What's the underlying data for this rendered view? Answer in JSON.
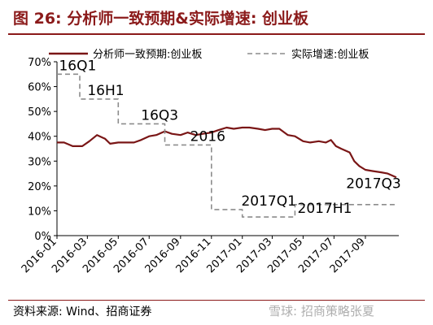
{
  "figure": {
    "title": "图 26:  分析师一致预期&实际增速:  创业板",
    "source": "资料来源:  Wind、招商证券",
    "watermark": "雪球: 招商策略张夏"
  },
  "colors": {
    "forecast": "#7a1616",
    "actual": "#8c8c8c",
    "title": "#8b1a1a"
  },
  "chart_data": {
    "type": "line",
    "ylim": [
      0,
      70
    ],
    "yticks": [
      "0%",
      "10%",
      "20%",
      "30%",
      "40%",
      "50%",
      "60%",
      "70%"
    ],
    "xlim": [
      "2016-01-01",
      "2017-11-06"
    ],
    "xticks": [
      "2016-01",
      "2016-03",
      "2016-05",
      "2016-07",
      "2016-09",
      "2016-11",
      "2017-01",
      "2017-03",
      "2017-05",
      "2017-07",
      "2017-09"
    ],
    "legend_position": "top",
    "grid": false,
    "series": [
      {
        "name": "分析师一致预期:创业板",
        "style": "solid",
        "x": [
          "2016-01-01",
          "2016-01-15",
          "2016-02-01",
          "2016-02-20",
          "2016-03-05",
          "2016-03-20",
          "2016-04-05",
          "2016-04-15",
          "2016-05-01",
          "2016-05-15",
          "2016-06-01",
          "2016-06-15",
          "2016-07-01",
          "2016-07-15",
          "2016-08-01",
          "2016-08-15",
          "2016-09-01",
          "2016-09-15",
          "2016-10-01",
          "2016-10-15",
          "2016-11-01",
          "2016-11-15",
          "2016-12-01",
          "2016-12-15",
          "2017-01-01",
          "2017-01-15",
          "2017-02-01",
          "2017-02-15",
          "2017-03-01",
          "2017-03-15",
          "2017-04-01",
          "2017-04-15",
          "2017-05-01",
          "2017-05-15",
          "2017-06-01",
          "2017-06-15",
          "2017-06-25",
          "2017-07-05",
          "2017-07-15",
          "2017-08-01",
          "2017-08-10",
          "2017-08-20",
          "2017-09-01",
          "2017-09-15",
          "2017-10-01",
          "2017-10-15",
          "2017-11-01"
        ],
        "y": [
          37.5,
          37.5,
          36,
          36,
          38,
          40.5,
          39,
          37,
          37.5,
          37.5,
          37.5,
          38.5,
          40,
          40.5,
          42,
          41,
          40.5,
          41.5,
          40.5,
          41,
          41.5,
          42.5,
          43.5,
          43,
          43.5,
          43.5,
          43,
          42.5,
          43,
          43,
          40.5,
          40,
          38,
          37.5,
          38,
          37.5,
          38.5,
          36,
          35,
          33.5,
          30,
          28,
          26.5,
          26,
          25.5,
          25,
          23.5
        ]
      },
      {
        "name": "实际增速:创业板",
        "style": "dashed",
        "x": [
          "2016-01-01",
          "2016-02-15",
          "2016-02-15",
          "2016-05-01",
          "2016-05-01",
          "2016-08-01",
          "2016-08-01",
          "2016-11-01",
          "2016-11-01",
          "2017-01-01",
          "2017-01-01",
          "2017-04-15",
          "2017-04-15",
          "2017-07-15",
          "2017-07-15",
          "2017-11-01"
        ],
        "y": [
          65,
          65,
          55,
          55,
          45,
          45,
          36.5,
          36.5,
          10.5,
          10.5,
          7.5,
          7.5,
          12.5,
          12.5,
          12.5,
          12.5
        ]
      }
    ],
    "annotations": [
      {
        "text": "16Q1",
        "x": "2016-01-05",
        "y": 65
      },
      {
        "text": "16H1",
        "x": "2016-03-01",
        "y": 55
      },
      {
        "text": "16Q3",
        "x": "2016-06-15",
        "y": 45
      },
      {
        "text": "2016",
        "x": "2016-09-20",
        "y": 36.5
      },
      {
        "text": "2017Q1",
        "x": "2016-12-30",
        "y": 10.5
      },
      {
        "text": "2017H1",
        "x": "2017-04-20",
        "y": 7.5
      },
      {
        "text": "2017Q3",
        "x": "2017-07-25",
        "y": 17.5
      }
    ]
  }
}
